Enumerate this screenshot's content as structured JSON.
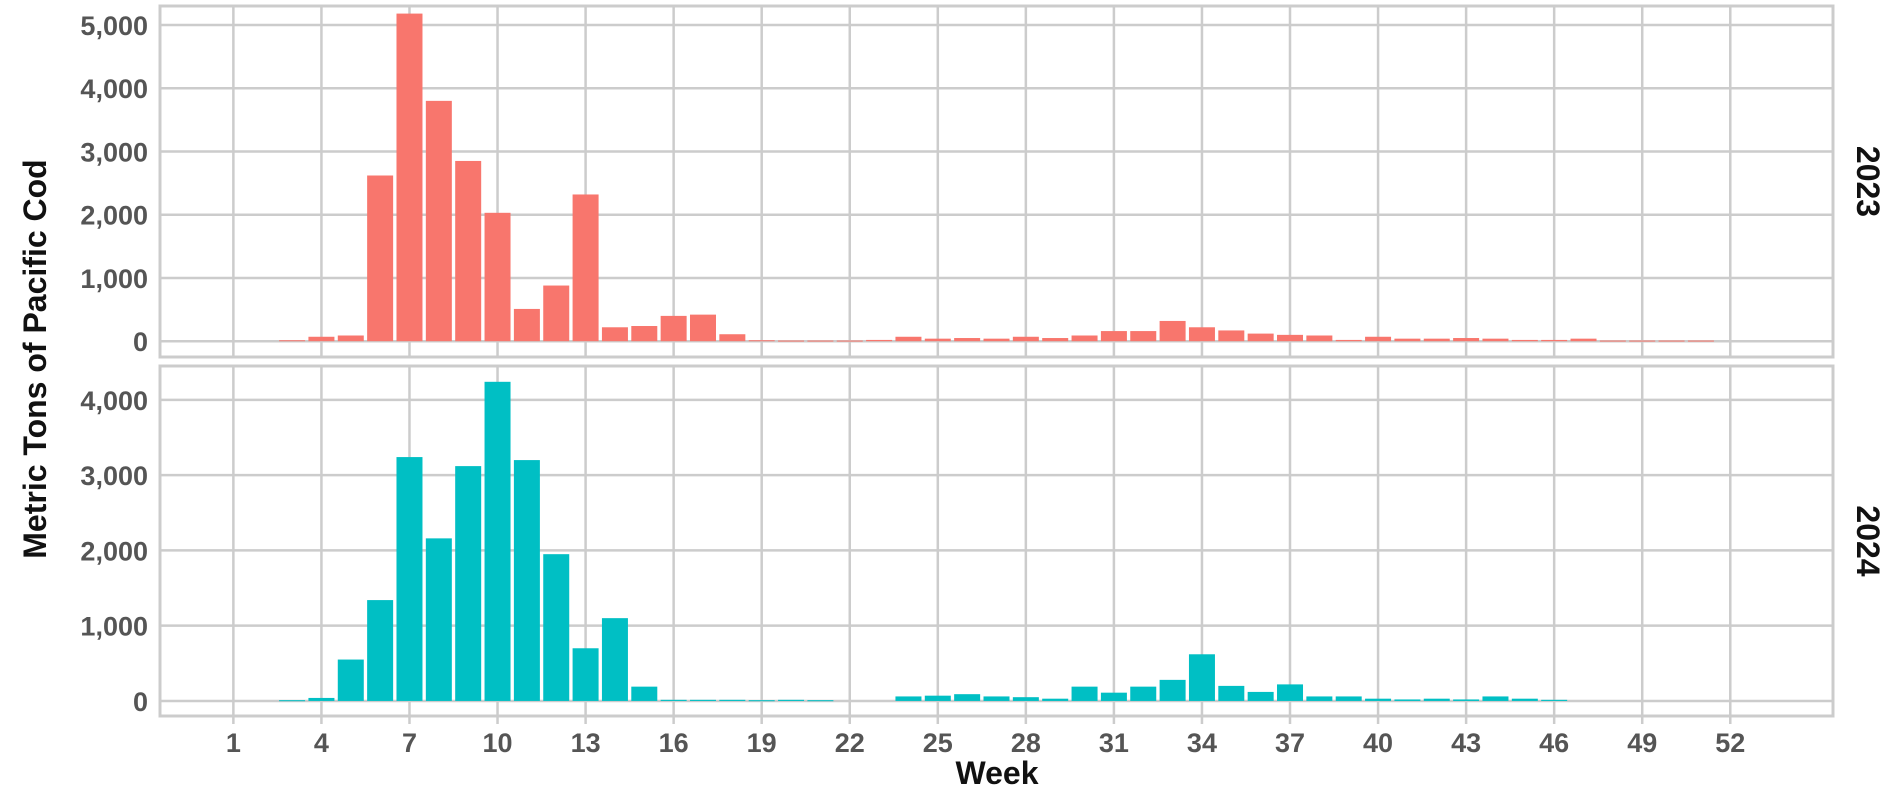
{
  "chart_data": {
    "type": "bar",
    "xlabel": "Week",
    "ylabel": "Metric Tons of Pacific Cod",
    "x_ticks": [
      1,
      4,
      7,
      10,
      13,
      16,
      19,
      22,
      25,
      28,
      31,
      34,
      37,
      40,
      43,
      46,
      49,
      52
    ],
    "xlim": [
      -1.5,
      55.5
    ],
    "grid": true,
    "facets": [
      {
        "name": "2023",
        "color": "#F8766D",
        "ylim": [
          -250,
          5300
        ],
        "y_ticks": [
          0,
          1000,
          2000,
          3000,
          4000,
          5000
        ],
        "y_tick_labels": [
          "0",
          "1,000",
          "2,000",
          "3,000",
          "4,000",
          "5,000"
        ],
        "weeks": [
          3,
          4,
          5,
          6,
          7,
          8,
          9,
          10,
          11,
          12,
          13,
          14,
          15,
          16,
          17,
          18,
          19,
          20,
          21,
          22,
          23,
          24,
          25,
          26,
          27,
          28,
          29,
          30,
          31,
          32,
          33,
          34,
          35,
          36,
          37,
          38,
          39,
          40,
          41,
          42,
          43,
          44,
          45,
          46,
          47,
          48,
          49,
          50,
          51
        ],
        "values": [
          15,
          70,
          90,
          2620,
          5180,
          3800,
          2850,
          2030,
          510,
          880,
          2320,
          220,
          240,
          400,
          420,
          110,
          15,
          10,
          10,
          10,
          20,
          70,
          40,
          50,
          40,
          70,
          50,
          90,
          160,
          160,
          320,
          220,
          170,
          120,
          100,
          90,
          20,
          70,
          40,
          40,
          50,
          40,
          20,
          20,
          40,
          10,
          10,
          10,
          10
        ]
      },
      {
        "name": "2024",
        "color": "#00BFC4",
        "ylim": [
          -200,
          4450
        ],
        "y_ticks": [
          0,
          1000,
          2000,
          3000,
          4000
        ],
        "y_tick_labels": [
          "0",
          "1,000",
          "2,000",
          "3,000",
          "4,000"
        ],
        "weeks": [
          3,
          4,
          5,
          6,
          7,
          8,
          9,
          10,
          11,
          12,
          13,
          14,
          15,
          16,
          17,
          18,
          19,
          20,
          21,
          24,
          25,
          26,
          27,
          28,
          29,
          30,
          31,
          32,
          33,
          34,
          35,
          36,
          37,
          38,
          39,
          40,
          41,
          42,
          43,
          44,
          45,
          46
        ],
        "values": [
          10,
          40,
          550,
          1340,
          3240,
          2160,
          3120,
          4240,
          3200,
          1950,
          700,
          1100,
          190,
          15,
          15,
          15,
          10,
          15,
          10,
          60,
          70,
          90,
          60,
          50,
          30,
          190,
          110,
          190,
          280,
          620,
          200,
          120,
          220,
          60,
          60,
          30,
          20,
          30,
          20,
          60,
          30,
          15
        ]
      }
    ]
  }
}
